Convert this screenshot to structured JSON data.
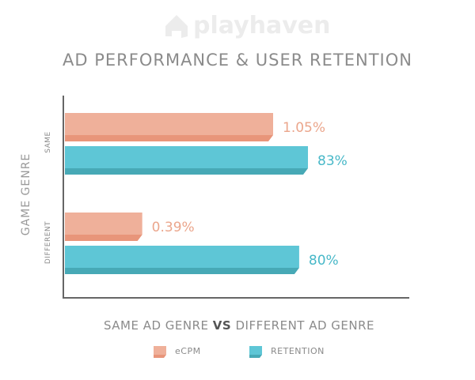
{
  "brand": {
    "logo_text": "playhaven"
  },
  "chart_data": {
    "type": "bar",
    "orientation": "horizontal",
    "title": "AD PERFORMANCE & USER RETENTION",
    "ylabel": "GAME GENRE",
    "categories": [
      "SAME",
      "DIFFERENT"
    ],
    "xlabel_parts": [
      "SAME AD GENRE ",
      "VS",
      " DIFFERENT AD GENRE"
    ],
    "series": [
      {
        "name": "eCPM",
        "values": [
          1.05,
          0.39
        ],
        "labels": [
          "1.05%",
          "0.39%"
        ],
        "color": "#efb09a",
        "shade": "#e8957a",
        "label_color": "#eba68c"
      },
      {
        "name": "RETENTION",
        "values": [
          83,
          80
        ],
        "labels": [
          "83%",
          "80%"
        ],
        "color": "#5ec6d6",
        "shade": "#47a9b6",
        "label_color": "#48b8c8"
      }
    ],
    "legend_position": "bottom",
    "grid": false
  }
}
